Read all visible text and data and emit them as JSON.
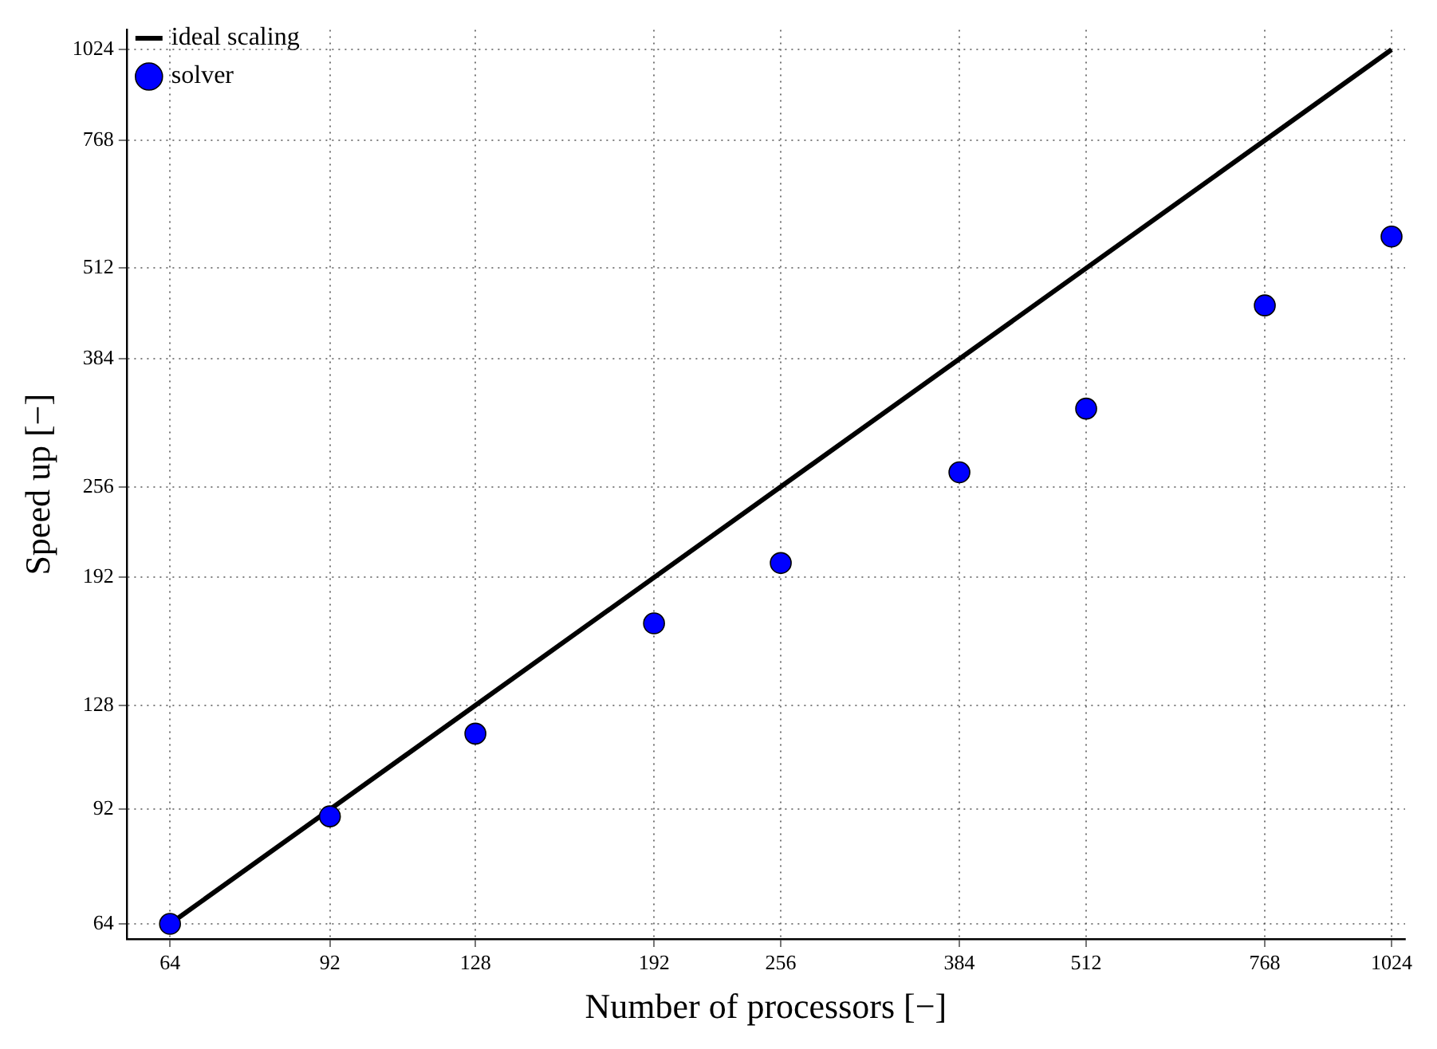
{
  "chart_data": {
    "type": "scatter",
    "xlabel": "Number of processors [−]",
    "ylabel": "Speed up [−]",
    "log": "xy",
    "grid": true,
    "legend": "top left",
    "xlim": [
      58,
      1056
    ],
    "ylim": [
      61,
      1090
    ],
    "xticks": [
      64,
      92,
      128,
      192,
      256,
      384,
      512,
      768,
      1024
    ],
    "yticks": [
      64,
      92,
      128,
      192,
      256,
      384,
      512,
      768,
      1024
    ],
    "series": [
      {
        "name": "ideal scaling",
        "type": "line",
        "color": "#000000",
        "line_style": "solid",
        "marker": "none",
        "x": [
          64,
          1024
        ],
        "values": [
          64,
          1024
        ]
      },
      {
        "name": "solver",
        "color": "#0000ff",
        "marker": "circle",
        "x": [
          64,
          92,
          128,
          192,
          256,
          384,
          512,
          768,
          1024
        ],
        "values": [
          64,
          90,
          117,
          166,
          201,
          268,
          328,
          455,
          566
        ]
      }
    ]
  }
}
